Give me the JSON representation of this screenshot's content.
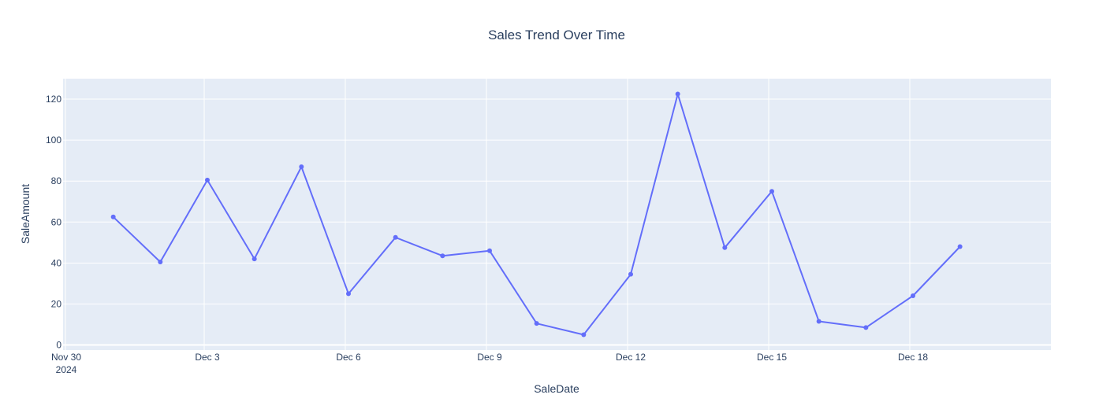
{
  "chart_data": {
    "type": "line",
    "title": "Sales Trend Over Time",
    "xlabel": "SaleDate",
    "ylabel": "SaleAmount",
    "x_axis_type": "date",
    "xlim": [
      "2024-11-30",
      "2024-12-21"
    ],
    "ylim": [
      -2.5,
      130
    ],
    "grid": true,
    "legend": "none",
    "colors": {
      "plot_bg": "#e5ecf6",
      "grid": "#ffffff",
      "line": "#636efa",
      "text": "#2a3f5f"
    },
    "x_ticks": [
      {
        "date": "2024-11-30",
        "label": "Nov 30",
        "sublabel": "2024"
      },
      {
        "date": "2024-12-03",
        "label": "Dec 3"
      },
      {
        "date": "2024-12-06",
        "label": "Dec 6"
      },
      {
        "date": "2024-12-09",
        "label": "Dec 9"
      },
      {
        "date": "2024-12-12",
        "label": "Dec 12"
      },
      {
        "date": "2024-12-15",
        "label": "Dec 15"
      },
      {
        "date": "2024-12-18",
        "label": "Dec 18"
      }
    ],
    "y_ticks": [
      0,
      20,
      40,
      60,
      80,
      100,
      120
    ],
    "x": [
      "2024-12-01",
      "2024-12-02",
      "2024-12-03",
      "2024-12-04",
      "2024-12-05",
      "2024-12-06",
      "2024-12-07",
      "2024-12-08",
      "2024-12-09",
      "2024-12-10",
      "2024-12-11",
      "2024-12-12",
      "2024-12-13",
      "2024-12-14",
      "2024-12-15",
      "2024-12-16",
      "2024-12-17",
      "2024-12-18",
      "2024-12-19"
    ],
    "values": [
      62.5,
      40.5,
      80.5,
      42,
      87,
      25,
      52.5,
      43.5,
      46,
      10.5,
      5,
      34.5,
      122.5,
      47.5,
      75,
      11.5,
      8.5,
      24,
      48
    ]
  }
}
